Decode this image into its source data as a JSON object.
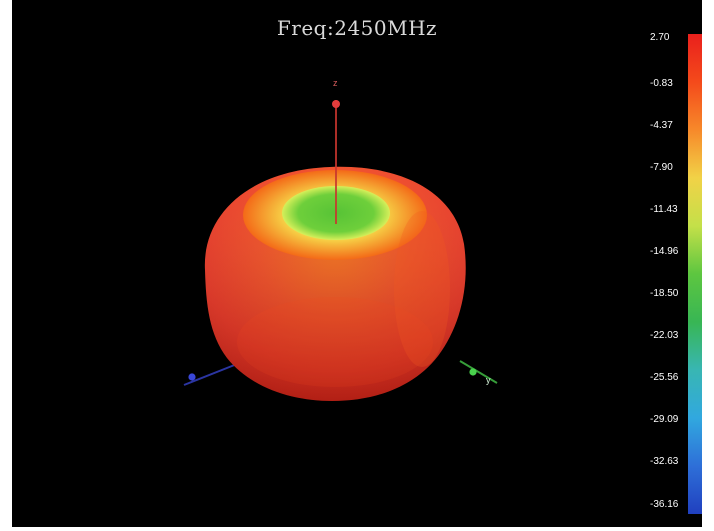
{
  "plot": {
    "title": "Freq:2450MHz"
  },
  "axes": {
    "z_label": "z",
    "x_label": "",
    "y_label": "y"
  },
  "colors": {
    "background": "#000000",
    "pattern_red": "#ee2d1e",
    "pattern_orange": "#f76a14",
    "pattern_yellow": "#f4e54a",
    "pattern_green": "#57c536",
    "z_axis": "#e23c3c",
    "x_axis": "#3a47d8",
    "y_axis": "#49d24d"
  },
  "colorbar": {
    "ticks": [
      "2.70",
      "-0.83",
      "-4.37",
      "-7.90",
      "-11.43",
      "-14.96",
      "-18.50",
      "-22.03",
      "-25.56",
      "-29.09",
      "-32.63",
      "-36.16"
    ],
    "max": 2.7,
    "min": -36.16,
    "gradient": [
      "#e9201c",
      "#f44a1b",
      "#f7892a",
      "#f1d247",
      "#c4e049",
      "#5dc640",
      "#38b654",
      "#38b6b3",
      "#31a8df",
      "#2e6fd8",
      "#2040bf"
    ]
  }
}
